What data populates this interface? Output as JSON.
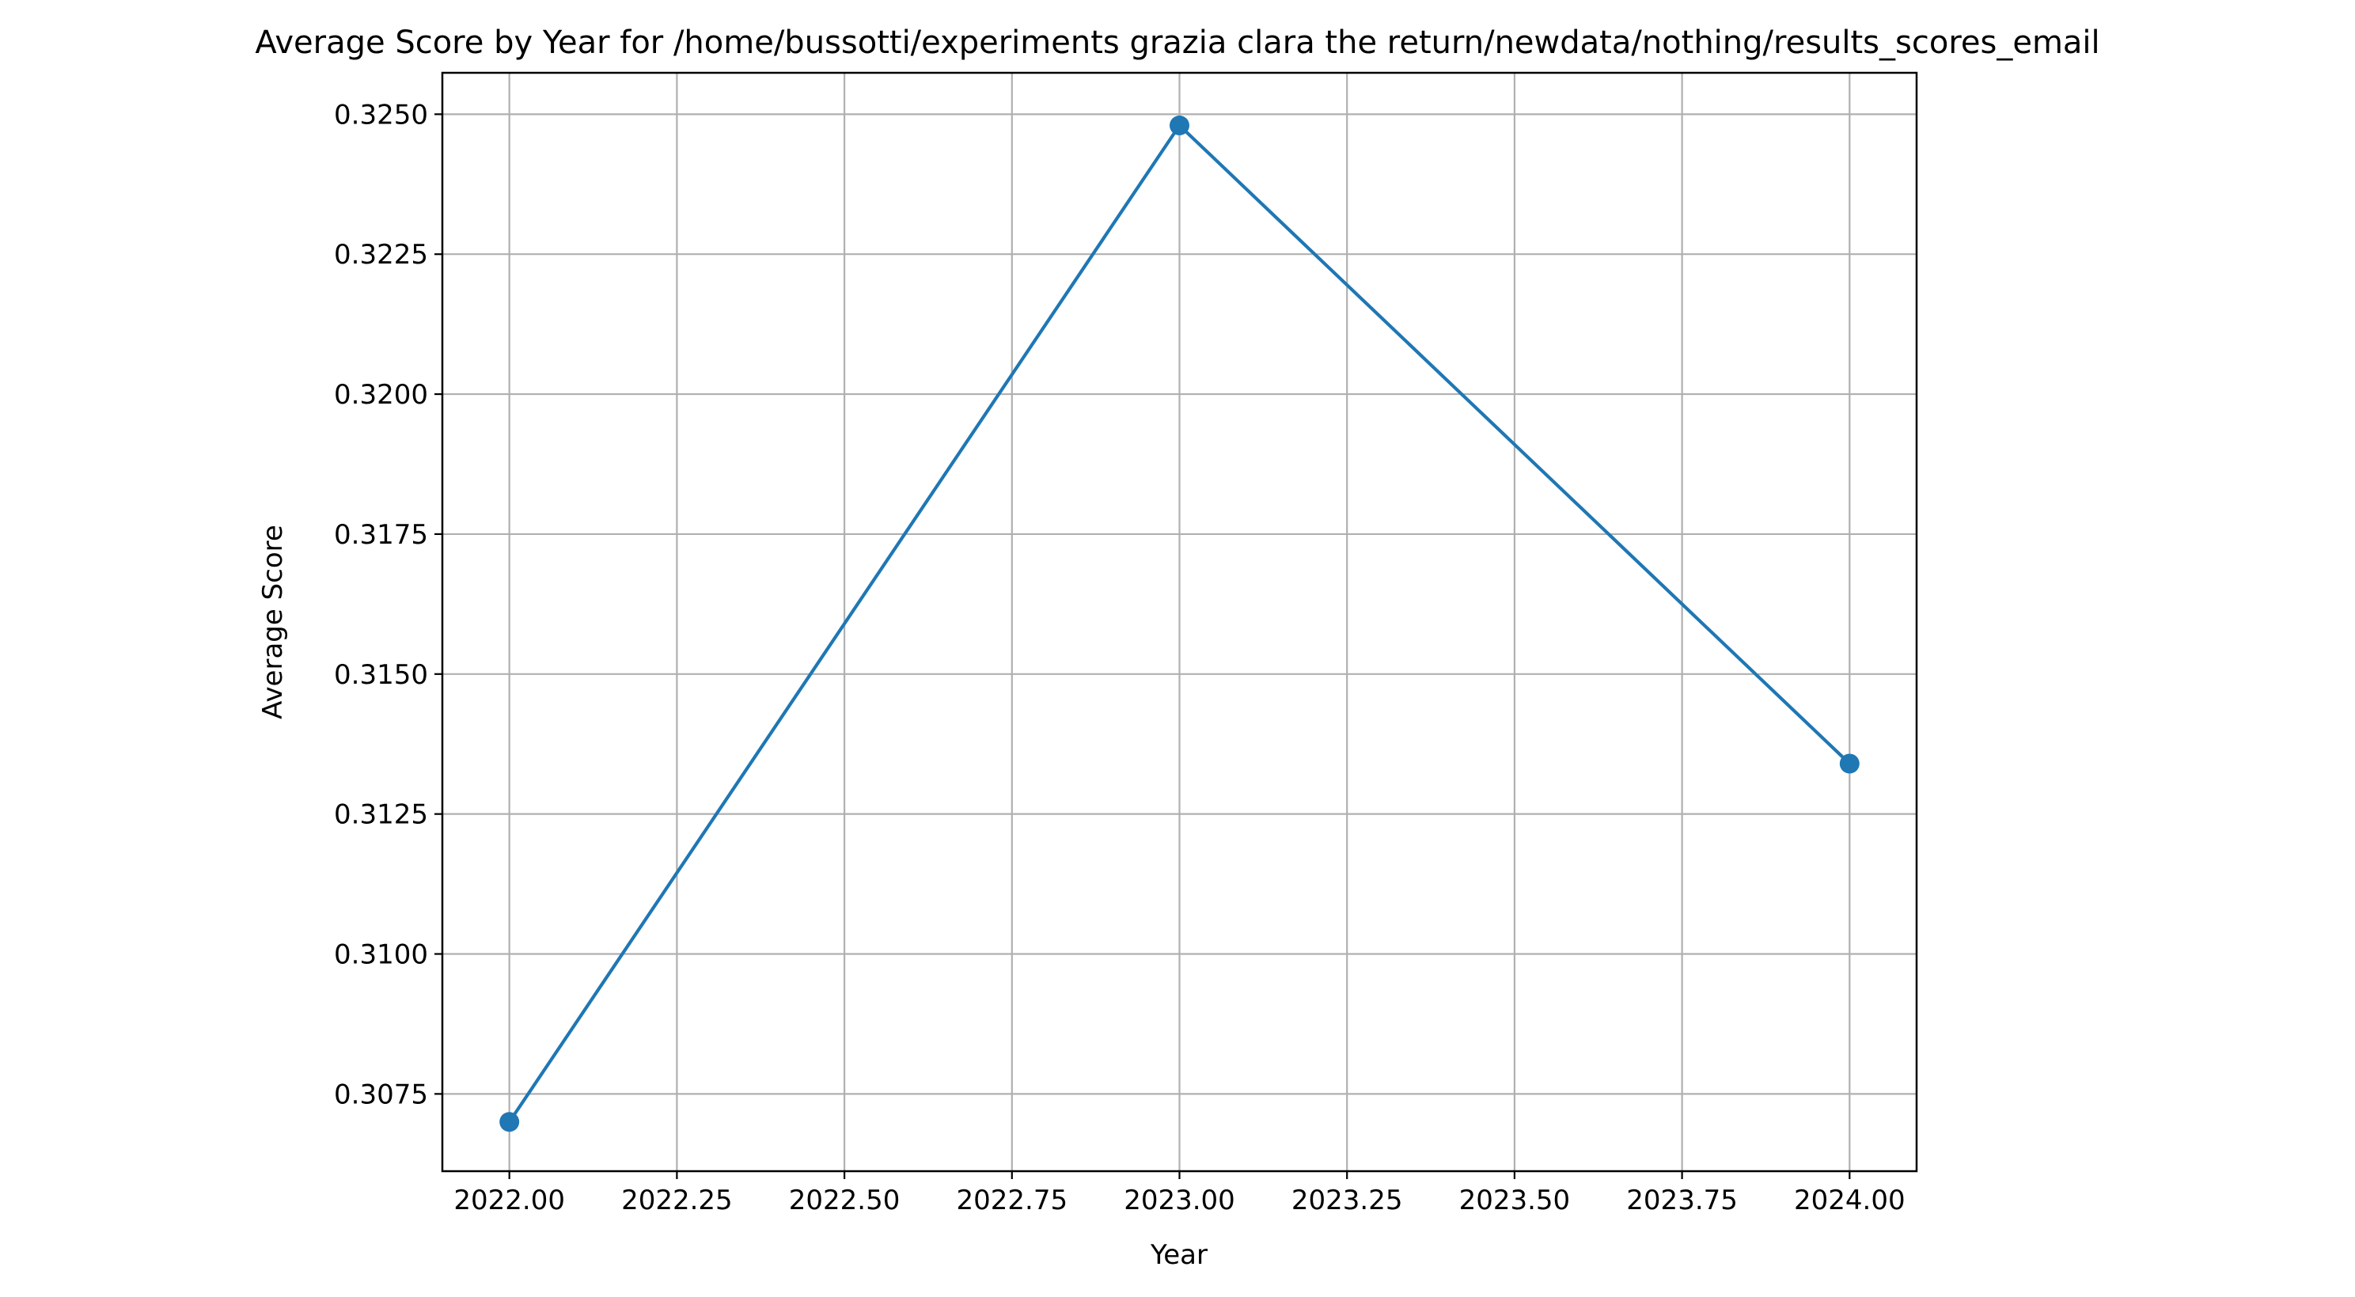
{
  "chart_data": {
    "type": "line",
    "title": "Average Score by Year for /home/bussotti/experiments grazia clara the return/newdata/nothing/results_scores_email",
    "xlabel": "Year",
    "ylabel": "Average Score",
    "xlim": [
      2021.9,
      2024.1
    ],
    "ylim": [
      0.30612,
      0.32574
    ],
    "grid": true,
    "x_ticks": [
      2022.0,
      2022.25,
      2022.5,
      2022.75,
      2023.0,
      2023.25,
      2023.5,
      2023.75,
      2024.0
    ],
    "x_tick_labels": [
      "2022.00",
      "2022.25",
      "2022.50",
      "2022.75",
      "2023.00",
      "2023.25",
      "2023.50",
      "2023.75",
      "2024.00"
    ],
    "y_ticks": [
      0.3075,
      0.31,
      0.3125,
      0.315,
      0.3175,
      0.32,
      0.3225,
      0.325
    ],
    "y_tick_labels": [
      "0.3075",
      "0.3100",
      "0.3125",
      "0.3150",
      "0.3175",
      "0.3200",
      "0.3225",
      "0.3250"
    ],
    "series": [
      {
        "color": "#1f77b4",
        "marker": "circle",
        "x": [
          2022,
          2023,
          2024
        ],
        "values": [
          0.307,
          0.3248,
          0.3134
        ]
      }
    ]
  }
}
